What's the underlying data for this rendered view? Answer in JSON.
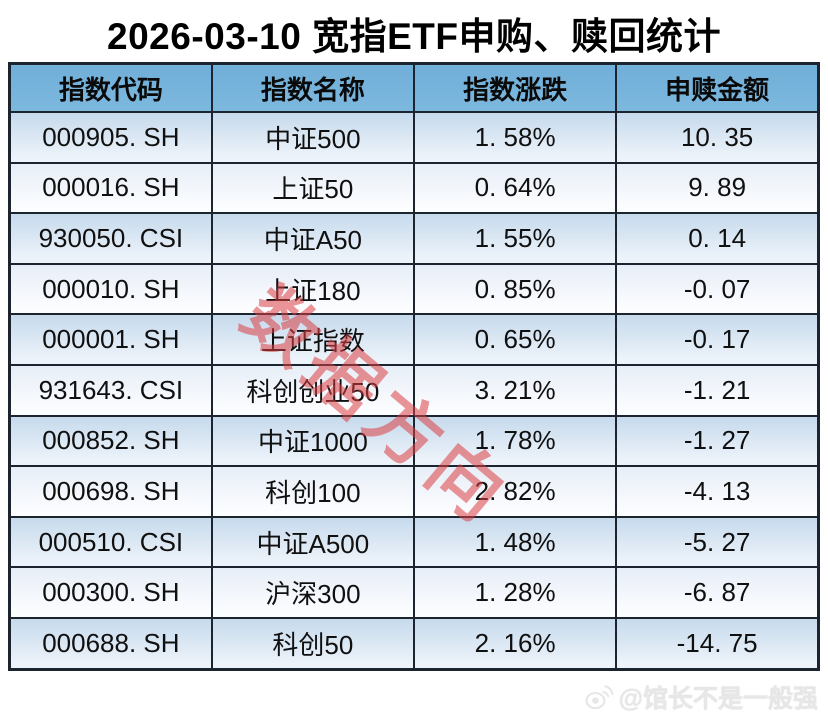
{
  "title": "2026-03-10 宽指ETF申购、赎回统计",
  "table": {
    "headers": [
      "指数代码",
      "指数名称",
      "指数涨跌",
      "申赎金额"
    ],
    "display_rows": [
      [
        "000905. SH",
        "中证500",
        "1. 58%",
        "10. 35"
      ],
      [
        "000016. SH",
        "上证50",
        "0. 64%",
        "9. 89"
      ],
      [
        "930050. CSI",
        "中证A50",
        "1. 55%",
        "0. 14"
      ],
      [
        "000010. SH",
        "上证180",
        "0. 85%",
        "-0. 07"
      ],
      [
        "000001. SH",
        "上证指数",
        "0. 65%",
        "-0. 17"
      ],
      [
        "931643. CSI",
        "科创创业50",
        "3. 21%",
        "-1. 21"
      ],
      [
        "000852. SH",
        "中证1000",
        "1. 78%",
        "-1. 27"
      ],
      [
        "000698. SH",
        "科创100",
        "2. 82%",
        "-4. 13"
      ],
      [
        "000510. CSI",
        "中证A500",
        "1. 48%",
        "-5. 27"
      ],
      [
        "000300. SH",
        "沪深300",
        "1. 28%",
        "-6. 87"
      ],
      [
        "000688. SH",
        "科创50",
        "2. 16%",
        "-14. 75"
      ]
    ]
  },
  "watermark": {
    "diagonal_text": "数据方向",
    "color": "#db3e42"
  },
  "footer": {
    "credit": "@馆长不是一般强",
    "icon": "weibo-icon"
  },
  "colors": {
    "header_bg": "#76b4dc",
    "row_odd_top": "#c6daec",
    "row_odd_bottom": "#edf3fa",
    "row_even_top": "#e7eef7",
    "row_even_bottom": "#fcfdff",
    "border": "#1c2430",
    "title_text": "#000000",
    "credit_text": "#e7e7e7"
  },
  "chart_data": {
    "type": "table",
    "title": "2026-03-10 宽指ETF申购、赎回统计",
    "columns": [
      "指数代码",
      "指数名称",
      "指数涨跌",
      "申赎金额"
    ],
    "rows": [
      {
        "code": "000905.SH",
        "name": "中证500",
        "change_pct": 1.58,
        "net_flow": 10.35
      },
      {
        "code": "000016.SH",
        "name": "上证50",
        "change_pct": 0.64,
        "net_flow": 9.89
      },
      {
        "code": "930050.CSI",
        "name": "中证A50",
        "change_pct": 1.55,
        "net_flow": 0.14
      },
      {
        "code": "000010.SH",
        "name": "上证180",
        "change_pct": 0.85,
        "net_flow": -0.07
      },
      {
        "code": "000001.SH",
        "name": "上证指数",
        "change_pct": 0.65,
        "net_flow": -0.17
      },
      {
        "code": "931643.CSI",
        "name": "科创创业50",
        "change_pct": 3.21,
        "net_flow": -1.21
      },
      {
        "code": "000852.SH",
        "name": "中证1000",
        "change_pct": 1.78,
        "net_flow": -1.27
      },
      {
        "code": "000698.SH",
        "name": "科创100",
        "change_pct": 2.82,
        "net_flow": -4.13
      },
      {
        "code": "000510.CSI",
        "name": "中证A500",
        "change_pct": 1.48,
        "net_flow": -5.27
      },
      {
        "code": "000300.SH",
        "name": "沪深300",
        "change_pct": 1.28,
        "net_flow": -6.87
      },
      {
        "code": "000688.SH",
        "name": "科创50",
        "change_pct": 2.16,
        "net_flow": -14.75
      }
    ]
  }
}
